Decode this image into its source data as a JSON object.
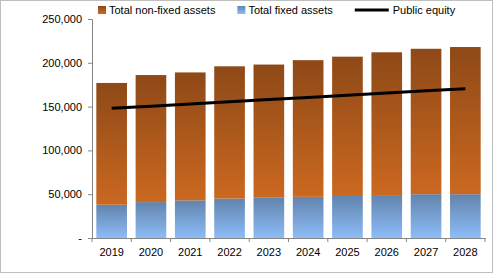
{
  "chart_data": {
    "type": "bar",
    "stacked": true,
    "grid": false,
    "legend": "top",
    "categories": [
      "2019",
      "2020",
      "2021",
      "2022",
      "2023",
      "2024",
      "2025",
      "2026",
      "2027",
      "2028"
    ],
    "series": [
      {
        "name": "Total non-fixed assets",
        "type": "bar",
        "color": "#b05a1c",
        "values": [
          139000,
          145000,
          146000,
          151000,
          152000,
          156000,
          159000,
          163000,
          166000,
          168000
        ]
      },
      {
        "name": "Total fixed assets",
        "type": "bar",
        "color": "#7aa3d6",
        "values": [
          38000,
          41000,
          43000,
          45000,
          46000,
          47000,
          48000,
          49000,
          50000,
          50000
        ]
      },
      {
        "name": "Public equity",
        "type": "line",
        "color": "#000000",
        "values": [
          148000,
          150500,
          153000,
          155500,
          158000,
          160500,
          163000,
          165500,
          168000,
          170500
        ]
      }
    ],
    "ylim": [
      0,
      250000
    ],
    "yticks": [
      {
        "value": 0,
        "label": "-"
      },
      {
        "value": 50000,
        "label": "50,000"
      },
      {
        "value": 100000,
        "label": "100,000"
      },
      {
        "value": 150000,
        "label": "150,000"
      },
      {
        "value": 200000,
        "label": "200,000"
      },
      {
        "value": 250000,
        "label": "250,000"
      }
    ]
  }
}
